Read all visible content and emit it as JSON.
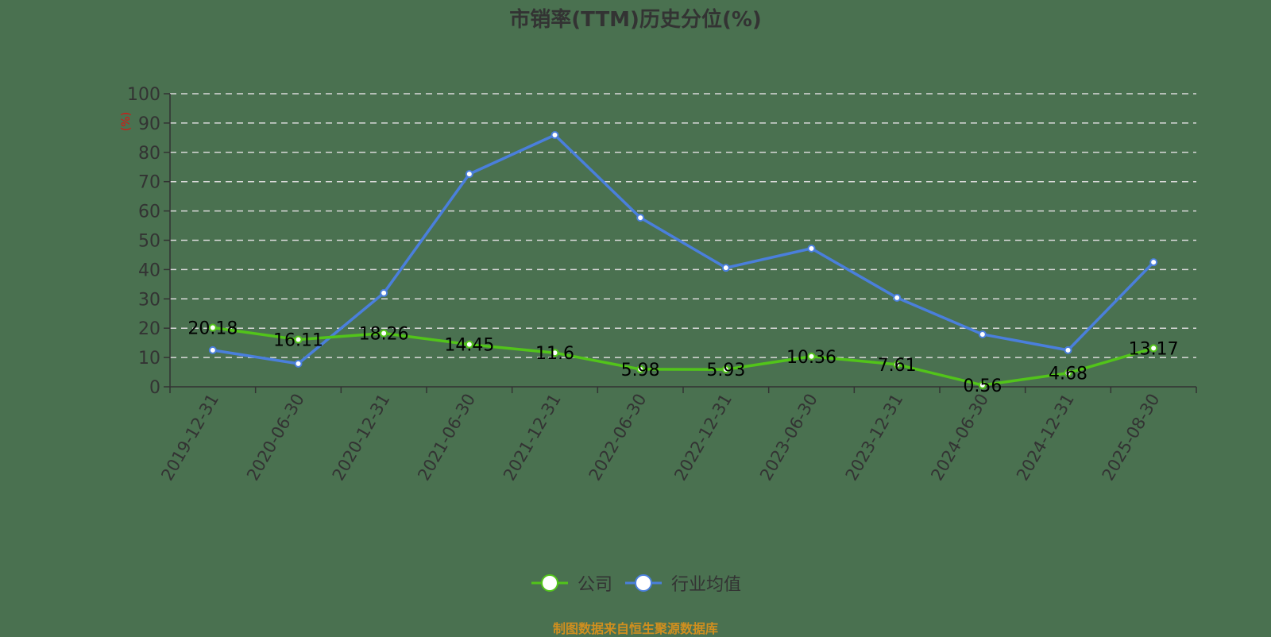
{
  "title": "市销率(TTM)历史分位(%)",
  "footer": "制图数据来自恒生聚源数据库",
  "legend": [
    {
      "label": "公司",
      "color": "#52c41a"
    },
    {
      "label": "行业均值",
      "color": "#4a7fdc"
    }
  ],
  "chart_data": {
    "type": "line",
    "title": "市销率(TTM)历史分位(%)",
    "xlabel": "",
    "ylabel": "(%)",
    "ylim": [
      0,
      100
    ],
    "yticks": [
      0,
      10,
      20,
      30,
      40,
      50,
      60,
      70,
      80,
      90,
      100
    ],
    "grid": true,
    "legend_position": "bottom",
    "categories": [
      "2019-12-31",
      "2020-06-30",
      "2020-12-31",
      "2021-06-30",
      "2021-12-31",
      "2022-06-30",
      "2022-12-31",
      "2023-06-30",
      "2023-12-31",
      "2024-06-30",
      "2024-12-31",
      "2025-08-30"
    ],
    "series": [
      {
        "name": "公司",
        "color": "#52c41a",
        "values": [
          20.18,
          16.11,
          18.26,
          14.45,
          11.6,
          5.98,
          5.93,
          10.36,
          7.61,
          0.56,
          4.68,
          13.17
        ],
        "labels_shown": true
      },
      {
        "name": "行业均值",
        "color": "#4a7fdc",
        "values": [
          12.5,
          7.9,
          32.0,
          72.6,
          85.9,
          57.7,
          40.6,
          47.2,
          30.4,
          17.9,
          12.5,
          42.5
        ],
        "labels_shown": false
      }
    ]
  }
}
